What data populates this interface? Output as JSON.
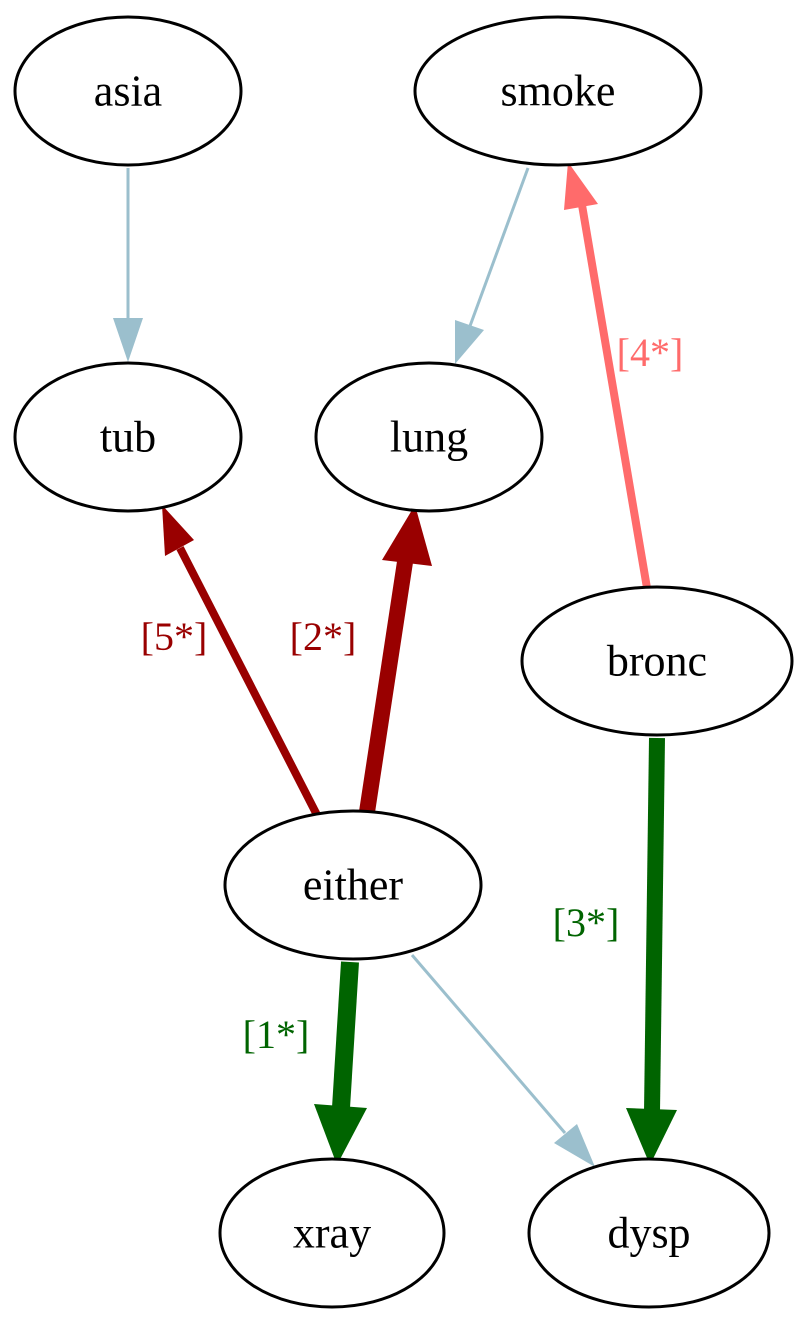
{
  "colors": {
    "background": "#ffffff",
    "node_stroke": "#000000",
    "light_blue": "#9bbfcd",
    "dark_red": "#990000",
    "light_red": "#ff6b6b",
    "dark_green": "#006400"
  },
  "nodes": {
    "asia": "asia",
    "smoke": "smoke",
    "tub": "tub",
    "lung": "lung",
    "bronc": "bronc",
    "either": "either",
    "xray": "xray",
    "dysp": "dysp"
  },
  "edges": [
    {
      "id": "asia-tub",
      "from": "asia",
      "to": "tub",
      "label": "",
      "color": "#9bbfcd",
      "weight": "thin"
    },
    {
      "id": "smoke-lung",
      "from": "smoke",
      "to": "lung",
      "label": "",
      "color": "#9bbfcd",
      "weight": "thin"
    },
    {
      "id": "bronc-smoke",
      "from": "bronc",
      "to": "smoke",
      "label": "[4*]",
      "color": "#ff6b6b",
      "weight": "medium"
    },
    {
      "id": "either-tub",
      "from": "either",
      "to": "tub",
      "label": "[5*]",
      "color": "#990000",
      "weight": "medium"
    },
    {
      "id": "either-lung",
      "from": "either",
      "to": "lung",
      "label": "[2*]",
      "color": "#990000",
      "weight": "thick"
    },
    {
      "id": "bronc-dysp",
      "from": "bronc",
      "to": "dysp",
      "label": "[3*]",
      "color": "#006400",
      "weight": "thick"
    },
    {
      "id": "either-xray",
      "from": "either",
      "to": "xray",
      "label": "[1*]",
      "color": "#006400",
      "weight": "thick"
    },
    {
      "id": "either-dysp",
      "from": "either",
      "to": "dysp",
      "label": "",
      "color": "#9bbfcd",
      "weight": "thin"
    }
  ]
}
